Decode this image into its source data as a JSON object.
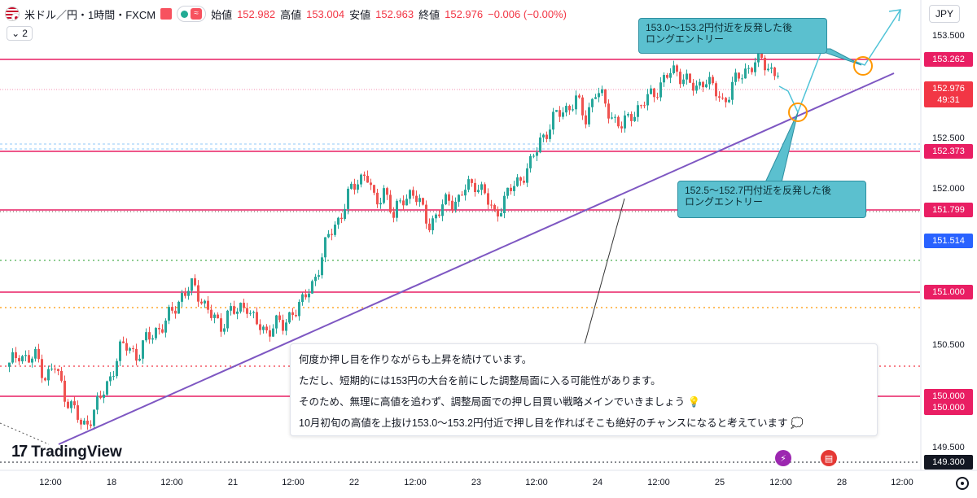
{
  "header": {
    "symbol": "米ドル／円・1時間・FXCM",
    "open_label": "始値",
    "open": "152.982",
    "high_label": "高値",
    "high": "153.004",
    "low_label": "安値",
    "low": "152.963",
    "close_label": "終値",
    "close": "152.976",
    "change": "−0.006 (−0.00%)",
    "wave_icon": "≈",
    "indicator_count": "2"
  },
  "currency": "JPY",
  "y_axis": {
    "ticks": [
      "153.500",
      "152.500",
      "152.000",
      "150.500",
      "149.500"
    ]
  },
  "badges": {
    "b1": "153.262",
    "b2": "152.976",
    "b2_timer": "49:31",
    "b3": "152.373",
    "b4": "151.799",
    "b5": "151.514",
    "b6": "151.000",
    "b7a": "150.000",
    "b7b": "150.000",
    "b8": "149.300"
  },
  "x_axis": {
    "ticks": [
      "12:00",
      "18",
      "12:00",
      "21",
      "12:00",
      "22",
      "12:00",
      "23",
      "12:00",
      "24",
      "12:00",
      "25",
      "12:00",
      "28",
      "12:00"
    ]
  },
  "callouts": {
    "upper_line1": "153.0〜153.2円付近を反発した後",
    "upper_line2": "ロングエントリー",
    "lower_line1": "152.5〜152.7円付近を反発した後",
    "lower_line2": "ロングエントリー"
  },
  "note": {
    "line1": "何度か押し目を作りながらも上昇を続けています。",
    "line2": "ただし、短期的には153円の大台を前にした調整局面に入る可能性があります。",
    "line3": "そのため、無理に高値を追わず、調整局面での押し目買い戦略メインでいきましょう 💡",
    "line4": "10月初旬の高値を上抜け153.0〜153.2円付近で押し目を作ればそこも絶好のチャンスになると考えています 💭"
  },
  "logo": {
    "mark": "17",
    "text": "TradingView"
  },
  "colors": {
    "up": "#26a69a",
    "down": "#ef5350",
    "resistance": "#e91e63",
    "trendline": "#7e57c2",
    "callout": "#5bc0cf"
  },
  "chart_data": {
    "type": "candlestick",
    "symbol": "USD/JPY",
    "timeframe": "1H",
    "ylim": [
      149.3,
      153.6
    ],
    "ohlc_close_path": [
      150.2,
      150.35,
      150.25,
      150.3,
      150.1,
      150.2,
      149.95,
      149.8,
      149.62,
      149.75,
      149.9,
      150.1,
      150.35,
      150.4,
      150.3,
      150.45,
      150.55,
      150.6,
      150.75,
      150.9,
      150.95,
      150.85,
      150.7,
      150.55,
      150.75,
      150.7,
      150.8,
      150.6,
      150.5,
      150.65,
      150.55,
      150.75,
      150.8,
      150.95,
      151.2,
      151.45,
      151.6,
      151.8,
      151.95,
      152.05,
      151.7,
      151.9,
      151.6,
      151.8,
      151.85,
      151.7,
      151.55,
      151.65,
      151.8,
      151.75,
      151.9,
      151.95,
      151.8,
      151.65,
      151.75,
      151.9,
      152.0,
      152.1,
      152.35,
      152.45,
      152.6,
      152.65,
      152.7,
      152.55,
      152.8,
      152.7,
      152.55,
      152.45,
      152.6,
      152.65,
      152.75,
      152.85,
      152.95,
      153.0,
      152.9,
      152.8,
      152.95,
      152.8,
      152.7,
      152.85,
      152.95,
      153.05,
      153.1,
      153.02,
      152.98
    ]
  }
}
